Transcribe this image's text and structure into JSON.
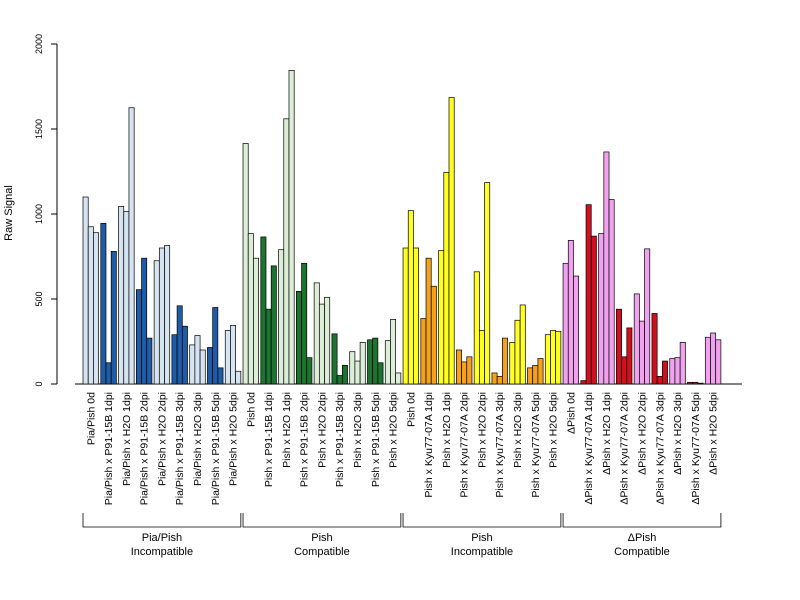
{
  "chart_data": {
    "type": "bar",
    "title": "",
    "ylabel": "Raw Signal",
    "xlabel": "",
    "ylim": [
      0,
      2000
    ],
    "yticks": [
      0,
      500,
      1000,
      1500,
      2000
    ],
    "grid": false,
    "categories": [
      "Pia/Pish 0d",
      "Pia/Pish x P91-15B 1dpi",
      "Pia/Pish x H2O 1dpi",
      "Pia/Pish x P91-15B 2dpi",
      "Pia/Pish x H2O 2dpi",
      "Pia/Pish x P91-15B 3dpi",
      "Pia/Pish x H2O 3dpi",
      "Pia/Pish x P91-15B 5dpi",
      "Pia/Pish x H2O 5dpi",
      "Pish 0d",
      "Pish x P91-15B 1dpi",
      "Pish x H2O 1dpi",
      "Pish x P91-15B 2dpi",
      "Pish x H2O 2dpi",
      "Pish x P91-15B 3dpi",
      "Pish x H2O 3dpi",
      "Pish x P91-15B 5dpi",
      "Pish x H2O 5dpi",
      "Pish 0d",
      "Pish x Kyu77-07A 1dpi",
      "Pish x H2O 1dpi",
      "Pish x Kyu77-07A 2dpi",
      "Pish x H2O 2dpi",
      "Pish x Kyu77-07A 3dpi",
      "Pish x H2O 3dpi",
      "Pish x Kyu77-07A 5dpi",
      "Pish x H2O 5dpi",
      "ΔPish 0d",
      "ΔPish x Kyu77-07A 1dpi",
      "ΔPish x H2O 1dpi",
      "ΔPish x Kyu77-07A 2dpi",
      "ΔPish x H2O 2dpi",
      "ΔPish x Kyu77-07A 3dpi",
      "ΔPish x H2O 3dpi",
      "ΔPish x Kyu77-07A 5dpi",
      "ΔPish x H2O 5dpi"
    ],
    "values": [
      [
        1100,
        925,
        890
      ],
      [
        945,
        125,
        780
      ],
      [
        1045,
        1015,
        1625
      ],
      [
        555,
        740,
        270
      ],
      [
        725,
        800,
        815
      ],
      [
        290,
        460,
        340
      ],
      [
        230,
        285,
        200
      ],
      [
        215,
        450,
        95
      ],
      [
        315,
        345,
        75
      ],
      [
        1415,
        885,
        740
      ],
      [
        865,
        440,
        695
      ],
      [
        790,
        1560,
        1845
      ],
      [
        545,
        710,
        155
      ],
      [
        595,
        470,
        510
      ],
      [
        295,
        50,
        110
      ],
      [
        190,
        135,
        245
      ],
      [
        260,
        270,
        125
      ],
      [
        255,
        380,
        65
      ],
      [
        800,
        1020,
        800
      ],
      [
        385,
        740,
        575
      ],
      [
        785,
        1245,
        1685
      ],
      [
        200,
        130,
        160
      ],
      [
        660,
        315,
        1185
      ],
      [
        65,
        45,
        270
      ],
      [
        245,
        375,
        465
      ],
      [
        95,
        110,
        150
      ],
      [
        290,
        315,
        310
      ],
      [
        710,
        845,
        635
      ],
      [
        20,
        1055,
        870
      ],
      [
        885,
        1365,
        1085
      ],
      [
        440,
        160,
        330
      ],
      [
        530,
        370,
        795
      ],
      [
        415,
        45,
        135
      ],
      [
        150,
        155,
        245
      ],
      [
        10,
        10,
        5
      ],
      [
        275,
        300,
        260
      ]
    ],
    "groups": [
      {
        "label_line1": "Pia/Pish",
        "label_line2": "Incompatible",
        "start": 0,
        "end": 8,
        "color_treat": "#1f5ca8",
        "color_ctrl": "#d6e4f2"
      },
      {
        "label_line1": "Pish",
        "label_line2": "Compatible",
        "start": 9,
        "end": 17,
        "color_treat": "#1c7430",
        "color_ctrl": "#dceed8"
      },
      {
        "label_line1": "Pish",
        "label_line2": "Incompatible",
        "start": 18,
        "end": 26,
        "color_treat": "#f5a11b",
        "color_ctrl": "#ffff24"
      },
      {
        "label_line1": "ΔPish",
        "label_line2": "Compatible",
        "start": 27,
        "end": 35,
        "color_treat": "#d0101e",
        "color_ctrl": "#f0a2ee"
      }
    ]
  }
}
